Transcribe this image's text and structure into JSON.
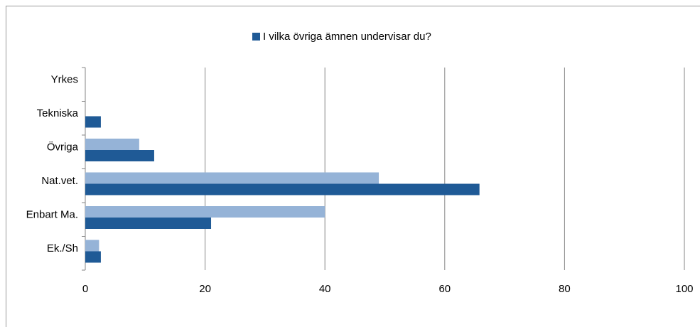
{
  "chart_data": {
    "type": "barh",
    "categories": [
      "Ek./Sh",
      "Enbart Ma.",
      "Nat.vet.",
      "Övriga",
      "Tekniska",
      "Yrkes"
    ],
    "series": [
      {
        "color": "#95b3d7",
        "values": [
          2.3,
          40,
          49,
          9,
          0,
          0
        ]
      },
      {
        "name": "I vilka övriga ämnen undervisar du?",
        "color": "#1f5a96",
        "values": [
          2.6,
          21,
          65.8,
          11.5,
          2.6,
          0
        ]
      }
    ],
    "xlim": [
      0,
      100
    ],
    "xticks": [
      0,
      20,
      40,
      60,
      80,
      100
    ],
    "grid": true,
    "legend": "top"
  }
}
